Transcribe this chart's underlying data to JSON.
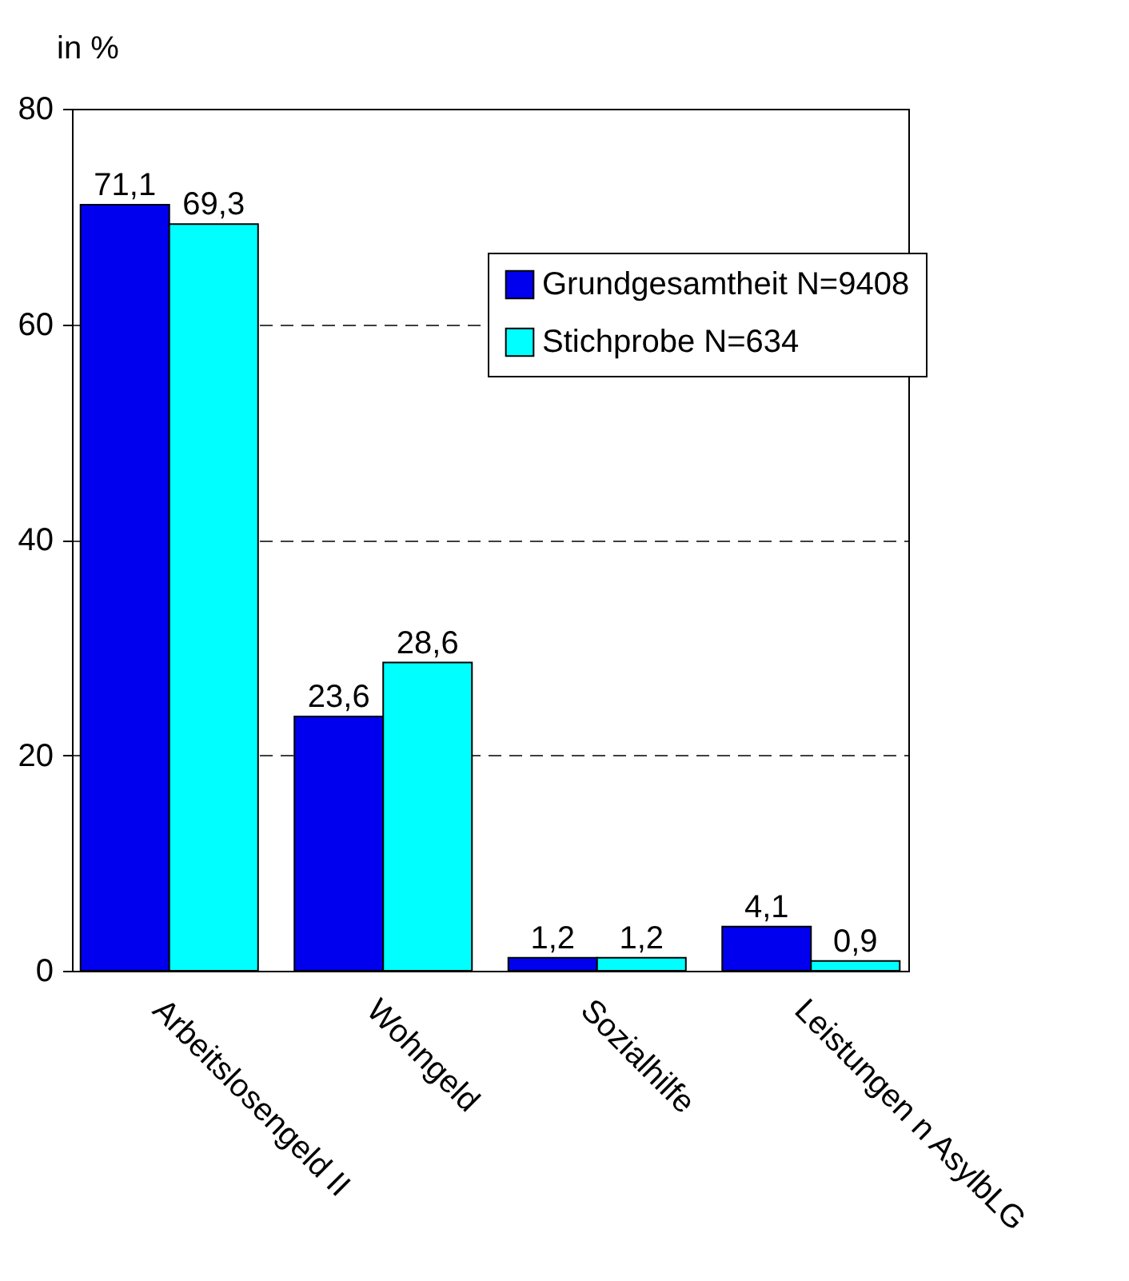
{
  "chart_data": {
    "type": "bar",
    "ylabel": "in %",
    "categories": [
      "Arbeitslosengeld II",
      "Wohngeld",
      "Sozialhilfe",
      "Leistungen n AsylbLG"
    ],
    "series": [
      {
        "name": "Grundgesamtheit N=9408",
        "color": "#0000ee",
        "values": [
          71.1,
          23.6,
          1.2,
          4.1
        ],
        "value_labels": [
          "71,1",
          "23,6",
          "1,2",
          "4,1"
        ]
      },
      {
        "name": "Stichprobe N=634",
        "color": "#00ffff",
        "values": [
          69.3,
          28.6,
          1.2,
          0.9
        ],
        "value_labels": [
          "69,3",
          "28,6",
          "1,2",
          "0,9"
        ]
      }
    ],
    "ylim": [
      0,
      80
    ],
    "yticks": [
      0,
      20,
      40,
      60,
      80
    ],
    "grid": "y",
    "legend": "top right"
  }
}
